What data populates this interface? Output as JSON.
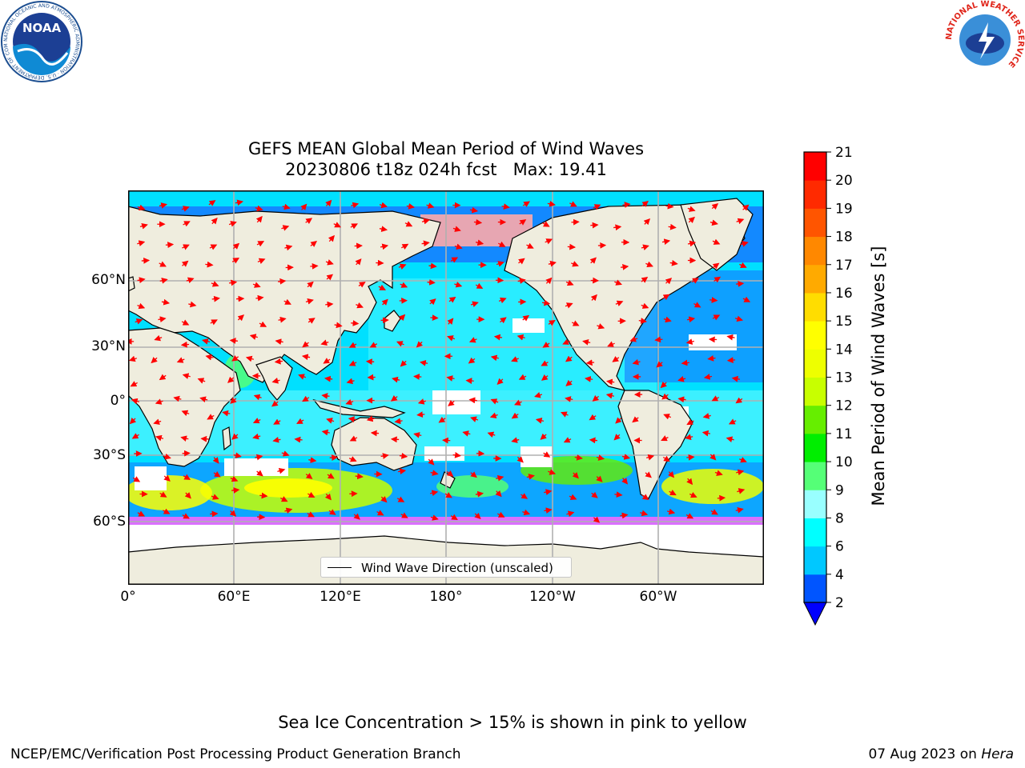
{
  "header": {
    "title_line1": "GEFS MEAN Global Mean Period of Wind Waves",
    "title_line2": "20230806 t18z 024h fcst   Max: 19.41"
  },
  "logos": {
    "noaa": {
      "text": "NOAA",
      "ring_text": "NATIONAL OCEANIC AND ATMOSPHERIC ADMINISTRATION · U.S. DEPARTMENT OF COMMERCE"
    },
    "nws": {
      "ring_text": "NATIONAL WEATHER SERVICE"
    }
  },
  "map": {
    "lat_ticks": [
      "60°N",
      "30°N",
      "0°",
      "30°S",
      "60°S"
    ],
    "lon_ticks": [
      "0°",
      "60°E",
      "120°E",
      "180°",
      "120°W",
      "60°W"
    ],
    "legend_label": "Wind Wave Direction (unscaled)"
  },
  "colorbar": {
    "label": "Mean Period of Wind Waves [s]",
    "ticks": [
      "2",
      "4",
      "6",
      "8",
      "9",
      "10",
      "11",
      "12",
      "13",
      "14",
      "15",
      "16",
      "17",
      "18",
      "19",
      "20",
      "21"
    ],
    "colors": [
      "#0055ff",
      "#00c8ff",
      "#00ffff",
      "#99ffff",
      "#55ff77",
      "#00ee00",
      "#66ee00",
      "#c8ff00",
      "#eeff00",
      "#ffff00",
      "#ffdd00",
      "#ffaa00",
      "#ff8800",
      "#ff5500",
      "#ff2a00",
      "#ff0000"
    ],
    "extend_color": "#0000ff"
  },
  "colors": {
    "land": "#efedde",
    "arrow": "#ff0000",
    "grid": "#b0b0b0"
  },
  "footer": {
    "note": "Sea Ice Concentration > 15% is shown in pink to yellow",
    "credit": "NCEP/EMC/Verification Post Processing Product Generation Branch",
    "date": "07 Aug 2023",
    "host_prefix": "on",
    "host": "Hera"
  }
}
